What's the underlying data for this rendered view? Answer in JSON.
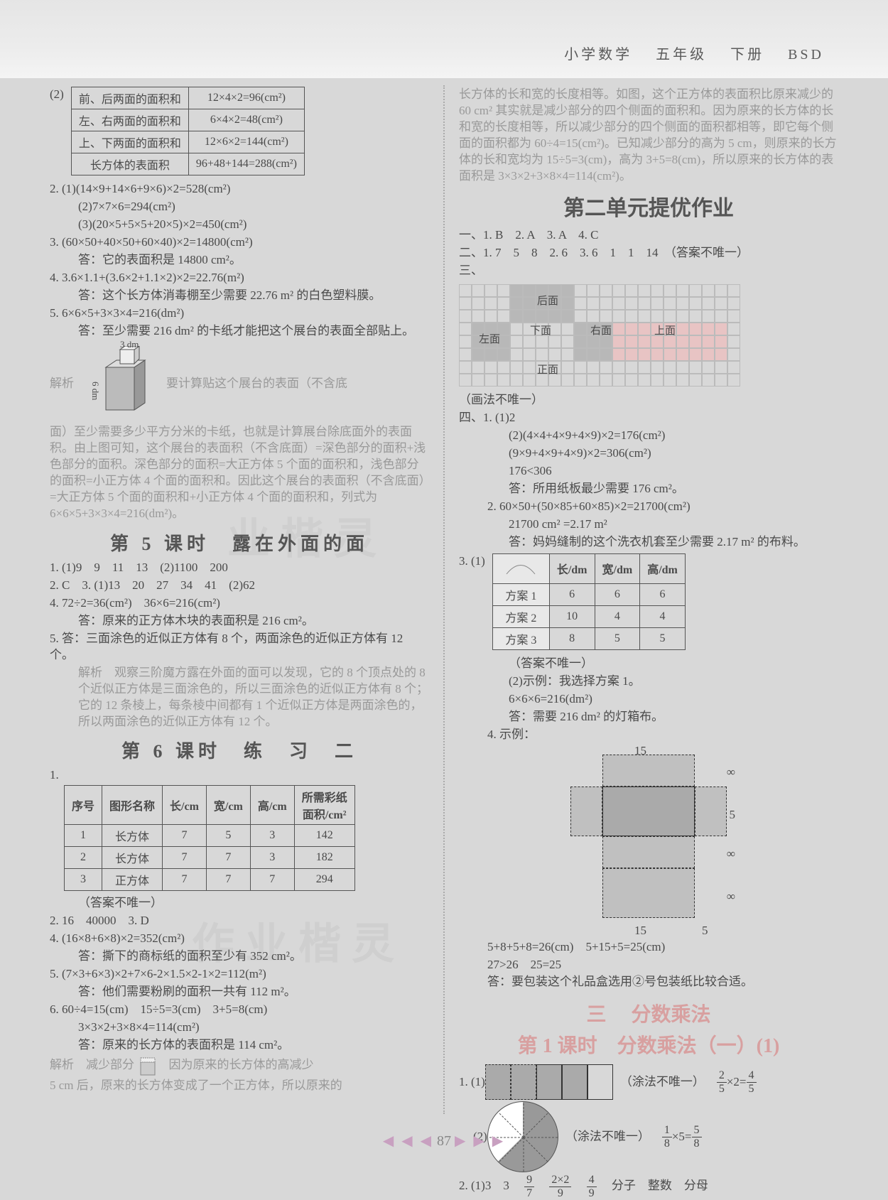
{
  "header": {
    "subject": "小学数学",
    "grade": "五年级",
    "volume": "下册",
    "edition": "BSD"
  },
  "left": {
    "q2_label": "(2)",
    "table1": {
      "rows": [
        {
          "label": "前、后两面的面积和",
          "expr": "12×4×2=96(cm²)"
        },
        {
          "label": "左、右两面的面积和",
          "expr": "6×4×2=48(cm²)"
        },
        {
          "label": "上、下两面的面积和",
          "expr": "12×6×2=144(cm²)"
        },
        {
          "label": "长方体的表面积",
          "expr": "96+48+144=288(cm²)"
        }
      ]
    },
    "item2": {
      "l1": "2. (1)(14×9+14×6+9×6)×2=528(cm²)",
      "l2": "(2)7×7×6=294(cm²)",
      "l3": "(3)(20×5+5×5+20×5)×2=450(cm²)"
    },
    "item3": {
      "l1": "3. (60×50+40×50+60×40)×2=14800(cm²)",
      "l2": "答：它的表面积是 14800 cm²。"
    },
    "item4": {
      "l1": "4. 3.6×1.1+(3.6×2+1.1×2)×2=22.76(m²)",
      "l2": "答：这个长方体消毒棚至少需要 22.76 m² 的白色塑料膜。"
    },
    "item5": {
      "l1": "5. 6×6×5+3×3×4=216(dm²)",
      "l2": "答：至少需要 216 dm² 的卡纸才能把这个展台的表面全部贴上。"
    },
    "cube_label_top": "3 dm",
    "cube_label_side": "6 dm",
    "analysis_label": "解析",
    "analysis1": "要计算贴这个展台的表面（不含底",
    "analysis2": "面）至少需要多少平方分米的卡纸，也就是计算展台除底面外的表面积。由上图可知，这个展台的表面积（不含底面）=深色部分的面积+浅色部分的面积。深色部分的面积=大正方体 5 个面的面积和，浅色部分的面积=小正方体 4 个面的面积和。因此这个展台的表面积（不含底面）=大正方体 5 个面的面积和+小正方体 4 个面的面积和，列式为 6×6×5+3×3×4=216(dm²)。",
    "lesson5_title": "第 5 课时　露在外面的面",
    "l5_1": "1. (1)9　9　11　13　(2)1100　200",
    "l5_2": "2. C　3. (1)13　20　27　34　41　(2)62",
    "l5_4a": "4. 72÷2=36(cm²)　36×6=216(cm²)",
    "l5_4b": "答：原来的正方体木块的表面积是 216 cm²。",
    "l5_5a": "5. 答：三面涂色的近似正方体有 8 个，两面涂色的近似正方体有 12 个。",
    "l5_5b": "解析　观察三阶魔方露在外面的面可以发现，它的 8 个顶点处的 8 个近似正方体是三面涂色的，所以三面涂色的近似正方体有 8 个；它的 12 条棱上，每条棱中间都有 1 个近似正方体是两面涂色的，所以两面涂色的近似正方体有 12 个。",
    "lesson6_title": "第 6 课时　练　习　二",
    "table6": {
      "head": [
        "序号",
        "图形名称",
        "长/cm",
        "宽/cm",
        "高/cm",
        "所需彩纸\\n面积/cm²"
      ],
      "rows": [
        [
          "1",
          "长方体",
          "7",
          "5",
          "3",
          "142"
        ],
        [
          "2",
          "长方体",
          "7",
          "7",
          "3",
          "182"
        ],
        [
          "3",
          "正方体",
          "7",
          "7",
          "7",
          "294"
        ]
      ]
    },
    "t6_note": "（答案不唯一）",
    "l6_2": "2. 16　40000　3. D",
    "l6_4a": "4. (16×8+6×8)×2=352(cm²)",
    "l6_4b": "答：撕下的商标纸的面积至少有 352 cm²。",
    "l6_5a": "5. (7×3+6×3)×2+7×6-2×1.5×2-1×2=112(m²)",
    "l6_5b": "答：他们需要粉刷的面积一共有 112 m²。",
    "l6_6a": "6. 60÷4=15(cm)　15÷5=3(cm)　3+5=8(cm)",
    "l6_6b": "3×3×2+3×8×4=114(cm²)",
    "l6_6c": "答：原来的长方体的表面积是 114 cm²。",
    "l6_anal_a": "解析　减少部分",
    "l6_anal_b": "因为原来的长方体的高减少",
    "l6_anal_c": "5 cm 后，原来的长方体变成了一个正方体，所以原来的"
  },
  "right": {
    "cont1": "长方体的长和宽的长度相等。如图，这个正方体的表面积比原来减少的 60 cm² 其实就是减少部分的四个侧面的面积和。因为原来的长方体的长和宽的长度相等，所以减少部分的四个侧面的面积都相等，即它每个侧面的面积都为 60÷4=15(cm²)。已知减少部分的高为 5 cm，则原来的长方体的长和宽均为 15÷5=3(cm)，高为 3+5=8(cm)，所以原来的长方体的表面积是 3×3×2+3×8×4=114(cm²)。",
    "unit2_title": "第二单元提优作业",
    "u2_1": "一、1. B　2. A　3. A　4. C",
    "u2_2": "二、1. 7　5　8　2. 6　3. 6　1　1　14　（答案不唯一）",
    "u2_3": "三、",
    "net_labels": [
      "后面",
      "左面",
      "下面",
      "右面",
      "上面",
      "正面"
    ],
    "net_note": "（画法不唯一）",
    "u2_4_1a": "四、1. (1)2",
    "u2_4_1b": "(2)(4×4+4×9+4×9)×2=176(cm²)",
    "u2_4_1c": "(9×9+4×9+4×9)×2=306(cm²)",
    "u2_4_1d": "176<306",
    "u2_4_1e": "答：所用纸板最少需要 176 cm²。",
    "u2_4_2a": "2. 60×50+(50×85+60×85)×2=21700(cm²)",
    "u2_4_2b": "21700 cm² =2.17 m²",
    "u2_4_2c": "答：妈妈缝制的这个洗衣机套至少需要 2.17 m² 的布料。",
    "u2_4_3": "3. (1)",
    "table_plan": {
      "head": [
        "",
        "长/dm",
        "宽/dm",
        "高/dm"
      ],
      "rows": [
        [
          "方案 1",
          "6",
          "6",
          "6"
        ],
        [
          "方案 2",
          "10",
          "4",
          "4"
        ],
        [
          "方案 3",
          "8",
          "5",
          "5"
        ]
      ]
    },
    "plan_note": "（答案不唯一）",
    "plan_2a": "(2)示例：我选择方案 1。",
    "plan_2b": "6×6×6=216(dm²)",
    "plan_2c": "答：需要 216 dm² 的灯箱布。",
    "u2_4_4": "4. 示例：",
    "unfold_dims": {
      "w": "15",
      "h_top": "8",
      "side": "5"
    },
    "unfold_calc1": "5+8+5+8=26(cm)　5+15+5=25(cm)",
    "unfold_calc2": "27>26　25=25",
    "unfold_ans": "答：要包装这个礼品盒选用②号包装纸比较合适。",
    "sec3_label": "三",
    "sec3_title": "分数乘法",
    "lesson1_title": "第 1 课时　分数乘法（一）(1)",
    "f1_label": "1. (1)",
    "f1_note": "（涂法不唯一）",
    "f1_expr_a": "2",
    "f1_expr_b": "5",
    "f1_expr_c": "2",
    "f1_expr_d": "4",
    "f1_expr_e": "5",
    "f2_label": "(2)",
    "f2_expr_a": "1",
    "f2_expr_b": "8",
    "f2_expr_c": "5",
    "f2_expr_d": "5",
    "f2_expr_e": "8",
    "f3_line": "2. (1)3　3",
    "f3_vals": [
      "9",
      "7",
      "2×2",
      "9",
      "4",
      "9"
    ],
    "f3_tail": "分子　整数　分母"
  },
  "pageNumber": "87"
}
